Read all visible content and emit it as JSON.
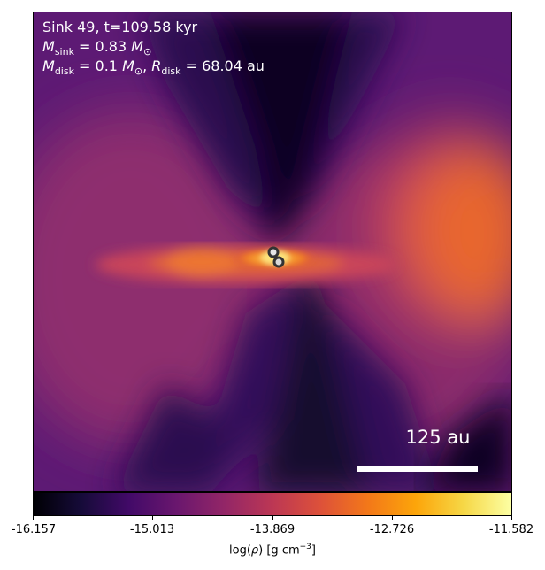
{
  "overlay": {
    "line1": "Sink 49, t=109.58 kyr",
    "line2_sym": "M",
    "line2_sub": "sink",
    "line2_val": " = 0.83 ",
    "line2_unit_sym": "M",
    "line2_unit_sub": "⊙",
    "line3_sym1": "M",
    "line3_sub1": "disk",
    "line3_val1": " = 0.1 ",
    "line3_unit_sym": "M",
    "line3_unit_sub": "⊙",
    "line3_sep": ", ",
    "line3_sym2": "R",
    "line3_sub2": "disk",
    "line3_val2": " = 68.04 au"
  },
  "scalebar": {
    "label": "125 au"
  },
  "colorbar": {
    "ticks": [
      "-16.157",
      "-15.013",
      "-13.869",
      "-12.726",
      "-11.582"
    ],
    "label_prefix": "log(",
    "label_rho": "ρ",
    "label_suffix": ") [g cm",
    "label_exp": "−3",
    "label_end": "]",
    "colormap": "inferno"
  },
  "colors": {
    "background_dark": "#0b0520",
    "mid_purple": "#4a1470",
    "magenta": "#8a2b6a",
    "orange": "#e8692e",
    "bright": "#fbd14a"
  },
  "sinks": {
    "count": 2
  }
}
